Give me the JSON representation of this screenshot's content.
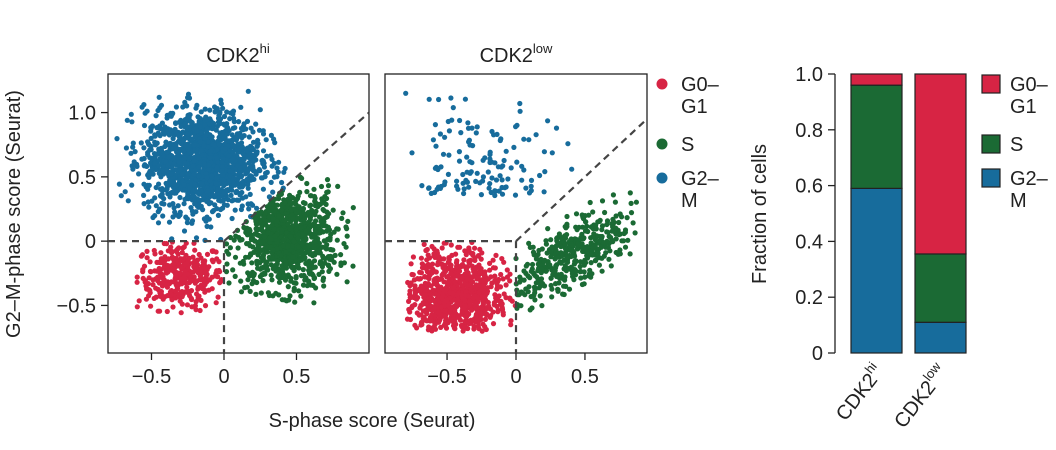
{
  "colors": {
    "g0g1": "#d72444",
    "s": "#1b6a34",
    "g2m": "#176c9c",
    "axis": "#222222",
    "dashed": "#444444"
  },
  "legend_scatter": [
    {
      "line1": "G0–",
      "line2": "G1",
      "color_key": "g0g1"
    },
    {
      "line1": "S",
      "line2": "",
      "color_key": "s"
    },
    {
      "line1": "G2–",
      "line2": "M",
      "color_key": "g2m"
    }
  ],
  "legend_bar": [
    {
      "line1": "G0–",
      "line2": "G1",
      "color_key": "g0g1"
    },
    {
      "line1": "S",
      "line2": "",
      "color_key": "s"
    },
    {
      "line1": "G2–",
      "line2": "M",
      "color_key": "g2m"
    }
  ],
  "chart_data": [
    {
      "type": "scatter",
      "panel": "CDK2hi",
      "title": {
        "base": "CDK2",
        "sup": "hi"
      },
      "xlabel": "S-phase score (Seurat)",
      "ylabel": "G2–M-phase score (Seurat)",
      "xlim": [
        -0.8,
        1.0
      ],
      "ylim": [
        -0.87,
        1.3
      ],
      "xticks": [
        -0.5,
        0,
        0.5
      ],
      "xtick_labels": [
        "−0.5",
        "0",
        "0.5"
      ],
      "yticks": [
        -0.5,
        0,
        0.5,
        1.0
      ],
      "ytick_labels": [
        "−0.5",
        "0",
        "0.5",
        "1.0"
      ],
      "dashed_boundaries": "x=0 for y<0; y=0 for x<0; y=x for x>0",
      "series": [
        {
          "name": "G0–G1",
          "color_key": "g0g1",
          "n_points": 340,
          "x_range": [
            -0.6,
            0.0
          ],
          "y_range": [
            -0.56,
            0.0
          ]
        },
        {
          "name": "S",
          "color_key": "s",
          "n_points": 900,
          "x_range": [
            0.0,
            0.9
          ],
          "y_range": [
            -0.48,
            0.5
          ]
        },
        {
          "name": "G2–M",
          "color_key": "g2m",
          "n_points": 1400,
          "x_range": [
            -0.75,
            0.5
          ],
          "y_range": [
            0.0,
            1.2
          ]
        }
      ]
    },
    {
      "type": "scatter",
      "panel": "CDK2low",
      "title": {
        "base": "CDK2",
        "sup": "low"
      },
      "xlabel": "S-phase score (Seurat)",
      "ylabel": "",
      "xlim": [
        -0.95,
        0.95
      ],
      "ylim": [
        -0.87,
        1.3
      ],
      "xticks": [
        -0.5,
        0,
        0.5
      ],
      "xtick_labels": [
        "−0.5",
        "0",
        "0.5"
      ],
      "yticks": [],
      "ytick_labels": [],
      "dashed_boundaries": "x=0 for y<0; y=0 for x<0; y=x for x>0",
      "series": [
        {
          "name": "G0–G1",
          "color_key": "g0g1",
          "n_points": 780,
          "x_range": [
            -0.8,
            0.0
          ],
          "y_range": [
            -0.7,
            0.0
          ]
        },
        {
          "name": "S",
          "color_key": "s",
          "n_points": 420,
          "x_range": [
            0.0,
            0.9
          ],
          "y_range": [
            -0.6,
            0.4
          ]
        },
        {
          "name": "G2–M",
          "color_key": "g2m",
          "n_points": 130,
          "x_range": [
            -0.8,
            0.45
          ],
          "y_range": [
            0.0,
            1.15
          ]
        }
      ]
    },
    {
      "type": "bar",
      "stacked": true,
      "categories": [
        {
          "base": "CDK2",
          "sup": "hi"
        },
        {
          "base": "CDK2",
          "sup": "low"
        }
      ],
      "ylabel": "Fraction of cells",
      "ylim": [
        0,
        1.0
      ],
      "yticks": [
        0,
        0.2,
        0.4,
        0.6,
        0.8,
        1.0
      ],
      "ytick_labels": [
        "0",
        "0.2",
        "0.4",
        "0.6",
        "0.8",
        "1.0"
      ],
      "series": [
        {
          "name": "G2–M",
          "color_key": "g2m",
          "values": [
            0.59,
            0.11
          ]
        },
        {
          "name": "S",
          "color_key": "s",
          "values": [
            0.37,
            0.245
          ]
        },
        {
          "name": "G0–G1",
          "color_key": "g0g1",
          "values": [
            0.04,
            0.645
          ]
        }
      ]
    }
  ]
}
